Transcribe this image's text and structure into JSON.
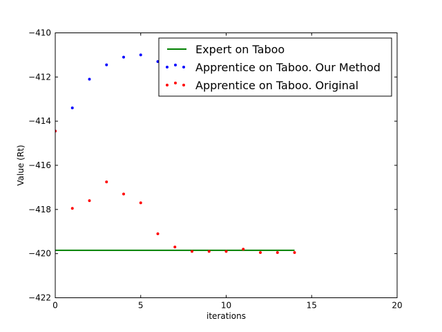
{
  "chart_data": {
    "type": "scatter",
    "xlabel": "iterations",
    "ylabel": "Value (Rt)",
    "xlim": [
      0,
      20
    ],
    "ylim": [
      -422,
      -410
    ],
    "xticks": [
      "0",
      "5",
      "10",
      "15",
      "20"
    ],
    "yticks": [
      "−422",
      "−420",
      "−418",
      "−416",
      "−414",
      "−412",
      "−410"
    ],
    "grid": false,
    "legend_position": "top-right",
    "series": [
      {
        "name": "Expert on Taboo",
        "kind": "line",
        "color": "#008000",
        "x": [
          0,
          14
        ],
        "y": [
          -419.85,
          -419.85
        ]
      },
      {
        "name": "Apprentice on Taboo. Our Method",
        "kind": "scatter",
        "color": "#0000ff",
        "x": [
          0,
          1,
          2,
          3,
          4,
          5,
          6
        ],
        "y": [
          -414.45,
          -413.4,
          -412.1,
          -411.45,
          -411.1,
          -411.0,
          -411.3
        ]
      },
      {
        "name": "Apprentice on Taboo. Original",
        "kind": "scatter",
        "color": "#ff0000",
        "x": [
          0,
          1,
          2,
          3,
          4,
          5,
          6,
          7,
          8,
          9,
          10,
          11,
          12,
          13,
          14
        ],
        "y": [
          -414.45,
          -417.95,
          -417.6,
          -416.75,
          -417.3,
          -417.7,
          -419.1,
          -419.7,
          -419.9,
          -419.9,
          -419.9,
          -419.8,
          -419.95,
          -419.95,
          -419.95
        ]
      }
    ]
  }
}
